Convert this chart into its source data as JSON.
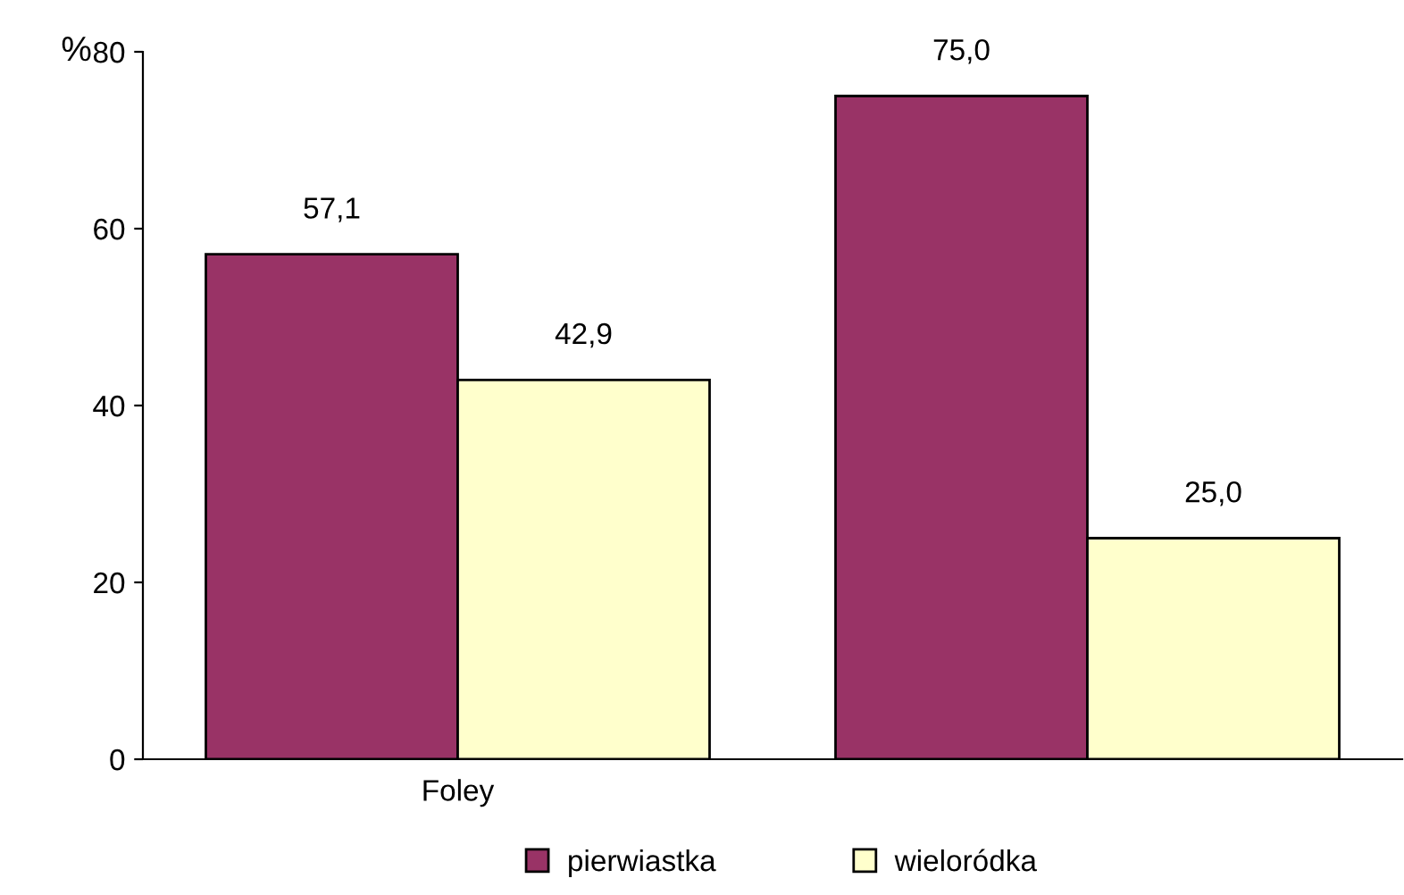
{
  "chart_data": {
    "type": "bar",
    "ylabel": "%",
    "categories": [
      "Foley",
      null
    ],
    "series": [
      {
        "name": "pierwiastka",
        "color": "#993366",
        "values": [
          57.1,
          75.0
        ],
        "value_labels": [
          "57,1",
          "75,0"
        ]
      },
      {
        "name": "wieloródka",
        "color": "#ffffcc",
        "values": [
          42.9,
          25.0
        ],
        "value_labels": [
          "42,9",
          "25,0"
        ]
      }
    ],
    "ylim": [
      0,
      80
    ],
    "yticks": [
      0,
      20,
      40,
      60,
      80
    ],
    "grid": false,
    "legend": "bottom"
  }
}
